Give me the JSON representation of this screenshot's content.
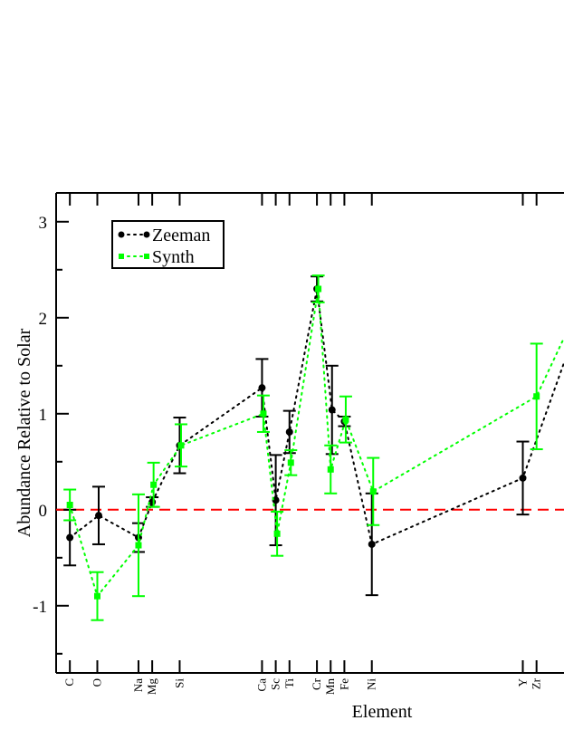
{
  "chart_data": {
    "type": "scatter",
    "xlabel": "Element",
    "ylabel": "Abundance Relative to Solar",
    "ylim": [
      -1.7,
      3.3
    ],
    "yticks": [
      -1,
      0,
      1,
      2,
      3
    ],
    "ytick_labels": [
      "-1",
      "0",
      "1",
      "2",
      "3"
    ],
    "xlim": [
      5,
      42
    ],
    "reference_line": {
      "y": 0,
      "color": "#ff0000",
      "style": "dashed"
    },
    "elements": [
      {
        "label": "C",
        "z": 6
      },
      {
        "label": "O",
        "z": 8
      },
      {
        "label": "Na",
        "z": 11
      },
      {
        "label": "Mg",
        "z": 12
      },
      {
        "label": "Si",
        "z": 14
      },
      {
        "label": "Ca",
        "z": 20
      },
      {
        "label": "Sc",
        "z": 21
      },
      {
        "label": "Ti",
        "z": 22
      },
      {
        "label": "Cr",
        "z": 24
      },
      {
        "label": "Mn",
        "z": 25
      },
      {
        "label": "Fe",
        "z": 26
      },
      {
        "label": "Ni",
        "z": 28
      },
      {
        "label": "Y",
        "z": 39
      },
      {
        "label": "Zr",
        "z": 40
      }
    ],
    "legend": {
      "position": "top-left"
    },
    "series": [
      {
        "name": "Zeeman",
        "color": "#000000",
        "marker": "circle",
        "points": [
          {
            "x": 6,
            "y": -0.29,
            "yerr": 0.29
          },
          {
            "x": 8.1,
            "y": -0.06,
            "yerr": 0.3
          },
          {
            "x": 11,
            "y": -0.29,
            "yerr": 0.15
          },
          {
            "x": 12,
            "y": 0.08,
            "yerr": 0.05
          },
          {
            "x": 14,
            "y": 0.67,
            "yerr": 0.29
          },
          {
            "x": 20,
            "y": 1.27,
            "yerr": 0.3
          },
          {
            "x": 21,
            "y": 0.1,
            "yerr": 0.47
          },
          {
            "x": 22,
            "y": 0.81,
            "yerr": 0.22
          },
          {
            "x": 24,
            "y": 2.3,
            "yerr": 0.13
          },
          {
            "x": 25.1,
            "y": 1.04,
            "yerr": 0.46
          },
          {
            "x": 26,
            "y": 0.92,
            "yerr": 0.05
          },
          {
            "x": 28,
            "y": -0.36,
            "yerr": 0.53
          },
          {
            "x": 39,
            "y": 0.33,
            "yerr": 0.38
          }
        ],
        "trend_end": {
          "x": 42,
          "y": 1.53
        }
      },
      {
        "name": "Synth",
        "color": "#00ff00",
        "marker": "square",
        "points": [
          {
            "x": 6,
            "y": 0.05,
            "yerr": 0.16
          },
          {
            "x": 8,
            "y": -0.9,
            "yerr": 0.25
          },
          {
            "x": 11,
            "y": -0.37,
            "yerr": 0.53
          },
          {
            "x": 12.1,
            "y": 0.26,
            "yerr": 0.23
          },
          {
            "x": 14.1,
            "y": 0.67,
            "yerr": 0.22
          },
          {
            "x": 20.1,
            "y": 1.0,
            "yerr": 0.19
          },
          {
            "x": 21.1,
            "y": -0.25,
            "yerr": 0.23
          },
          {
            "x": 22.1,
            "y": 0.49,
            "yerr": 0.13
          },
          {
            "x": 24.1,
            "y": 2.3,
            "yerr": 0.14
          },
          {
            "x": 25,
            "y": 0.42,
            "yerr": 0.25
          },
          {
            "x": 26.1,
            "y": 0.94,
            "yerr": 0.24
          },
          {
            "x": 28.1,
            "y": 0.19,
            "yerr": 0.35
          },
          {
            "x": 40,
            "y": 1.18,
            "yerr": 0.55
          }
        ],
        "trend_end": {
          "x": 42,
          "y": 1.79
        }
      }
    ]
  }
}
